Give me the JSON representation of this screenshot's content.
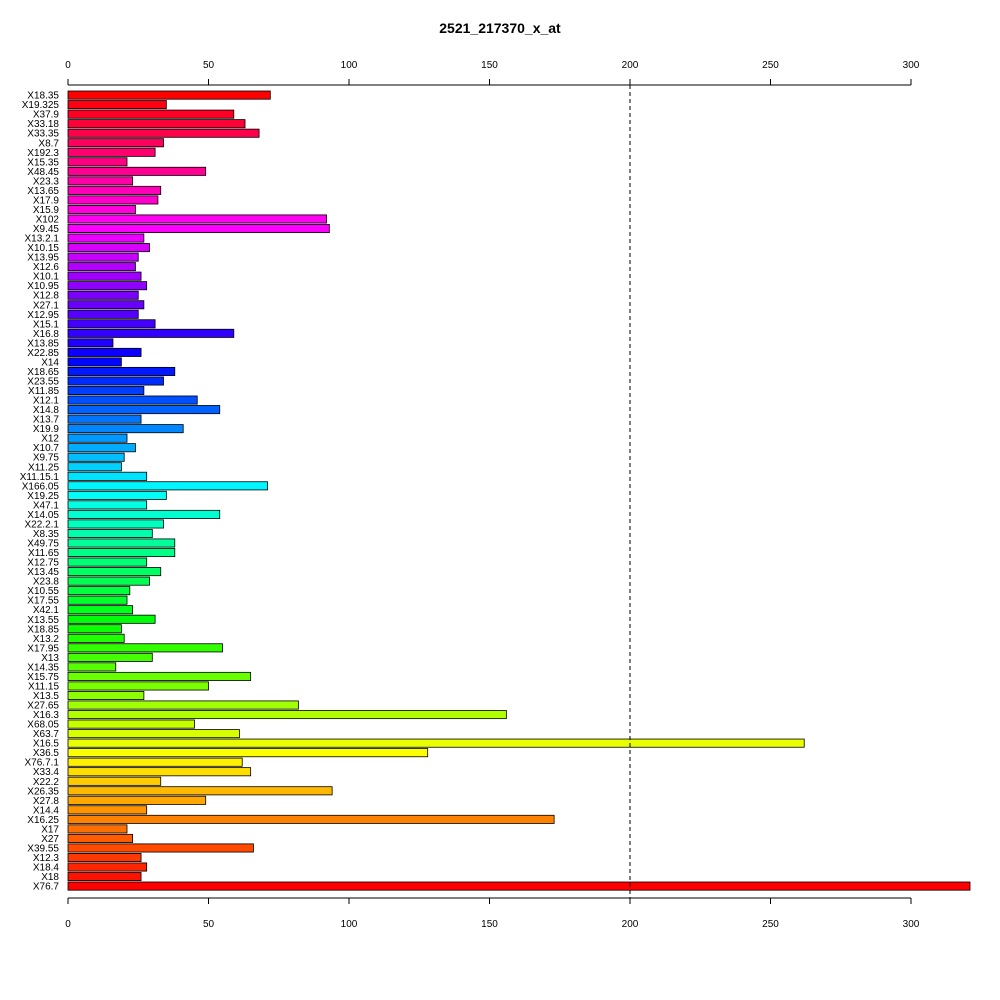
{
  "chart_data": {
    "type": "bar",
    "orientation": "horizontal",
    "title": "2521_217370_x_at",
    "xlabel": "",
    "ylabel": "",
    "xlim": [
      0,
      320
    ],
    "x_ticks": [
      0,
      50,
      100,
      150,
      200,
      250,
      300
    ],
    "reference_line": {
      "x": 200,
      "style": "dashed"
    },
    "axes": [
      "top",
      "bottom"
    ],
    "grid": false,
    "color_scheme": "rainbow",
    "categories": [
      "X18.35",
      "X19.325",
      "X37.9",
      "X33.18",
      "X33.35",
      "X8.7",
      "X192.3",
      "X15.35",
      "X48.45",
      "X23.3",
      "X13.65",
      "X17.9",
      "X15.9",
      "X102",
      "X9.45",
      "X13.2.1",
      "X10.15",
      "X13.95",
      "X12.6",
      "X10.1",
      "X10.95",
      "X12.8",
      "X27.1",
      "X12.95",
      "X15.1",
      "X16.8",
      "X13.85",
      "X22.85",
      "X14",
      "X18.65",
      "X23.55",
      "X11.85",
      "X12.1",
      "X14.8",
      "X13.7",
      "X19.9",
      "X12",
      "X10.7",
      "X9.75",
      "X11.25",
      "X11.15.1",
      "X166.05",
      "X19.25",
      "X47.1",
      "X14.05",
      "X22.2.1",
      "X8.35",
      "X49.75",
      "X11.65",
      "X12.75",
      "X13.45",
      "X23.8",
      "X10.55",
      "X17.55",
      "X42.1",
      "X13.55",
      "X18.85",
      "X13.2",
      "X17.95",
      "X13",
      "X14.35",
      "X15.75",
      "X11.15",
      "X13.5",
      "X27.65",
      "X16.3",
      "X68.05",
      "X63.7",
      "X16.5",
      "X36.5",
      "X76.7.1",
      "X33.4",
      "X22.2",
      "X26.35",
      "X27.8",
      "X14.4",
      "X16.25",
      "X17",
      "X27",
      "X39.55",
      "X12.3",
      "X18.4",
      "X18",
      "X76.7"
    ],
    "values": [
      72,
      35,
      59,
      63,
      68,
      34,
      31,
      21,
      49,
      23,
      33,
      32,
      24,
      92,
      93,
      27,
      29,
      25,
      24,
      26,
      28,
      25,
      27,
      25,
      31,
      59,
      16,
      26,
      19,
      38,
      34,
      27,
      46,
      54,
      26,
      41,
      21,
      24,
      20,
      19,
      28,
      71,
      35,
      28,
      54,
      34,
      30,
      38,
      38,
      28,
      33,
      29,
      22,
      21,
      23,
      31,
      19,
      20,
      55,
      30,
      17,
      65,
      50,
      27,
      82,
      156,
      45,
      61,
      262,
      128,
      62,
      65,
      33,
      94,
      49,
      28,
      173,
      21,
      23,
      66,
      26,
      28,
      26,
      321
    ]
  }
}
